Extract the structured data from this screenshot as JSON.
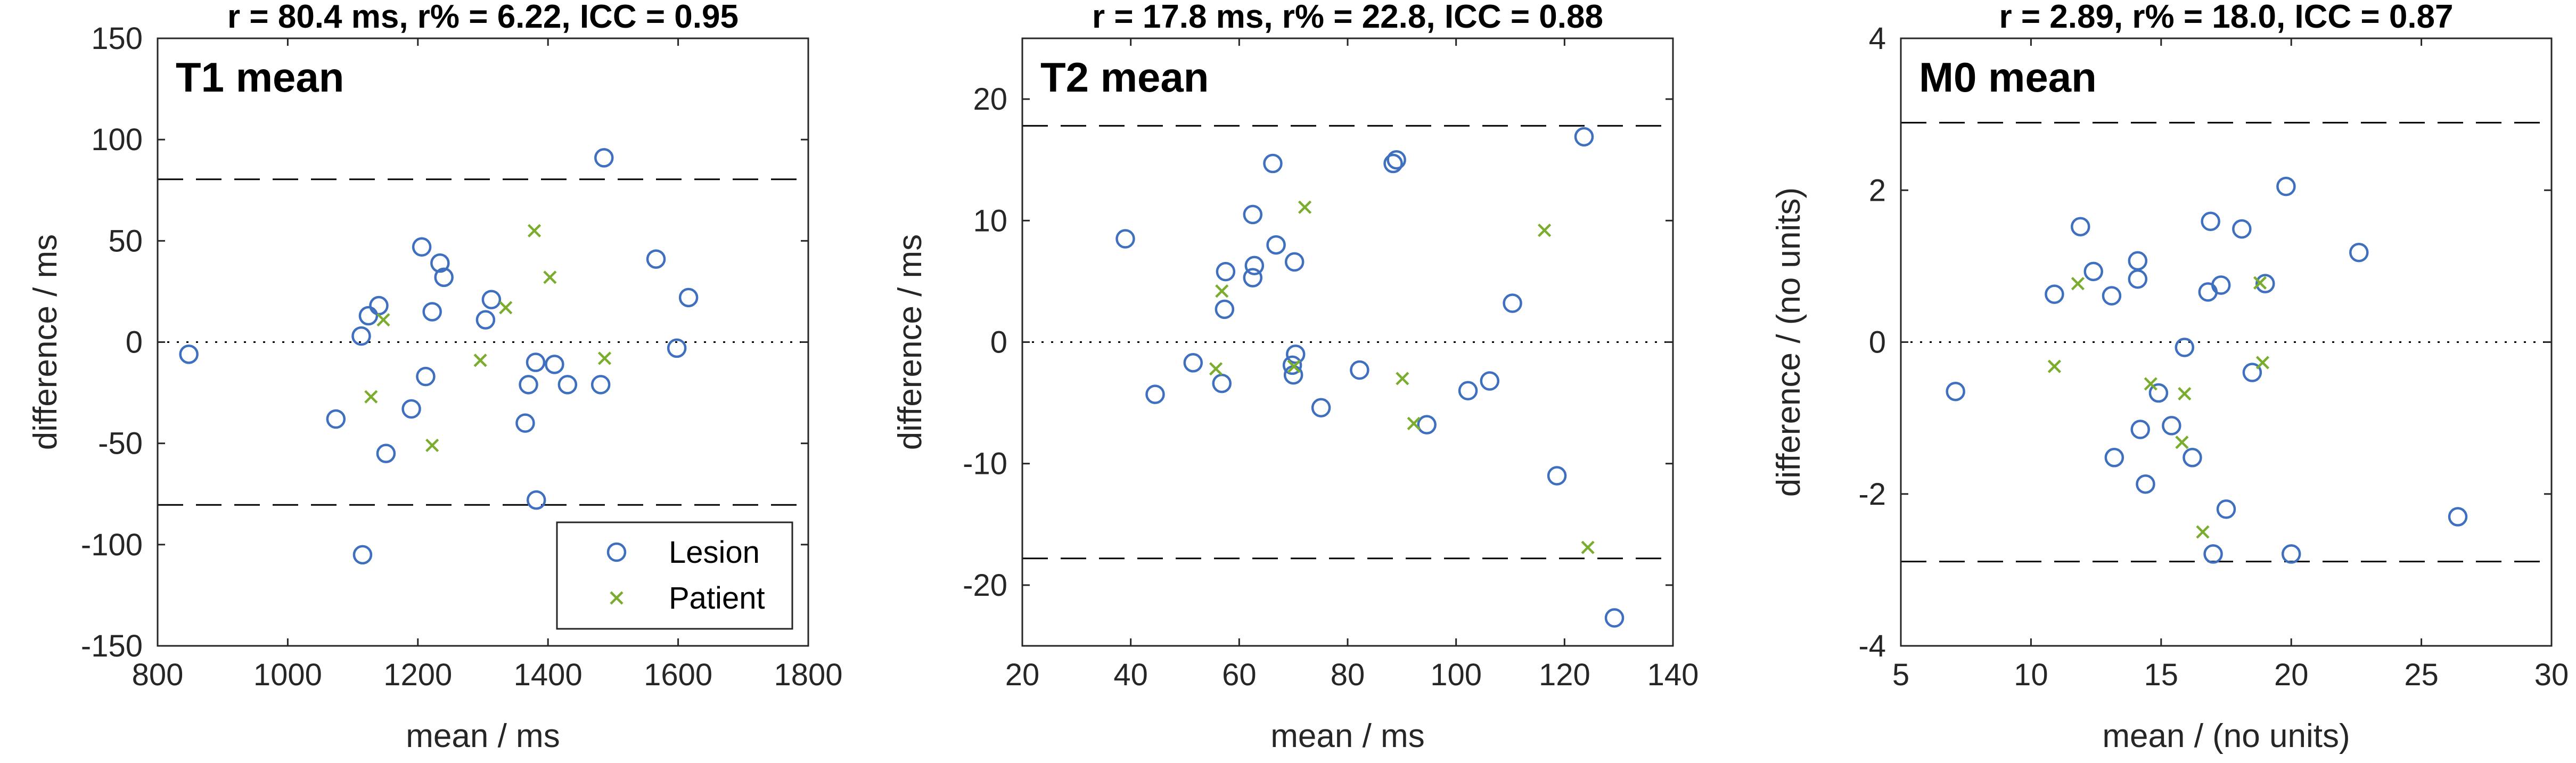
{
  "colors": {
    "lesion": "#3f6fbf",
    "patient": "#7aad2e"
  },
  "legend": {
    "lesion_label": "Lesion",
    "patient_label": "Patient"
  },
  "chart_data": [
    {
      "type": "scatter",
      "header": "r = 80.4 ms,  r% = 6.22,  ICC = 0.95",
      "panel_label": "T1 mean",
      "xlabel": "mean / ms",
      "ylabel": "difference / ms",
      "xlim": [
        800,
        1800
      ],
      "ylim": [
        -150,
        150
      ],
      "xticks": [
        800,
        1000,
        1200,
        1400,
        1600,
        1800
      ],
      "yticks": [
        -150,
        -100,
        -50,
        0,
        50,
        100,
        150
      ],
      "xtick_labels": [
        "800",
        "1000",
        "1200",
        "1400",
        "1600",
        "1800"
      ],
      "ytick_labels": [
        "-150",
        "-100",
        "-50",
        "0",
        "50",
        "100",
        "150"
      ],
      "limits_of_agreement": [
        80.4,
        -80.4
      ],
      "zero_line": 0,
      "show_legend": true,
      "series": [
        {
          "name": "Lesion",
          "marker": "circle",
          "points": [
            [
              848,
              -6
            ],
            [
              1074,
              -38
            ],
            [
              1113,
              3
            ],
            [
              1115,
              -105
            ],
            [
              1124,
              13
            ],
            [
              1140,
              18
            ],
            [
              1151,
              -55
            ],
            [
              1190,
              -33
            ],
            [
              1206,
              47
            ],
            [
              1212,
              -17
            ],
            [
              1222,
              15
            ],
            [
              1234,
              39
            ],
            [
              1240,
              32
            ],
            [
              1304,
              11
            ],
            [
              1313,
              21
            ],
            [
              1365,
              -40
            ],
            [
              1370,
              -21
            ],
            [
              1381,
              -10
            ],
            [
              1382,
              -78
            ],
            [
              1410,
              -11
            ],
            [
              1430,
              -21
            ],
            [
              1481,
              -21
            ],
            [
              1486,
              91
            ],
            [
              1566,
              41
            ],
            [
              1598,
              -3
            ],
            [
              1616,
              22
            ]
          ]
        },
        {
          "name": "Patient",
          "marker": "cross",
          "points": [
            [
              1147,
              11
            ],
            [
              1128,
              -27
            ],
            [
              1222,
              -51
            ],
            [
              1296,
              -9
            ],
            [
              1335,
              17
            ],
            [
              1379,
              55
            ],
            [
              1403,
              32
            ],
            [
              1487,
              -8
            ]
          ]
        }
      ]
    },
    {
      "type": "scatter",
      "header": "r = 17.8 ms,  r% = 22.8,  ICC = 0.88",
      "panel_label": "T2 mean",
      "xlabel": "mean / ms",
      "ylabel": "difference / ms",
      "xlim": [
        20,
        140
      ],
      "ylim": [
        -25,
        25
      ],
      "xticks": [
        20,
        40,
        60,
        80,
        100,
        120,
        140
      ],
      "yticks": [
        -20,
        -10,
        0,
        10,
        20
      ],
      "xtick_labels": [
        "20",
        "40",
        "60",
        "80",
        "100",
        "120",
        "140"
      ],
      "ytick_labels": [
        "-20",
        "-10",
        "0",
        "10",
        "20"
      ],
      "limits_of_agreement": [
        17.8,
        -17.8
      ],
      "zero_line": 0,
      "show_legend": false,
      "series": [
        {
          "name": "Lesion",
          "marker": "circle",
          "points": [
            [
              39,
              8.5
            ],
            [
              44.5,
              -4.3
            ],
            [
              51.5,
              -1.7
            ],
            [
              56.8,
              -3.4
            ],
            [
              57.5,
              5.8
            ],
            [
              57.3,
              2.7
            ],
            [
              62.5,
              10.5
            ],
            [
              62.8,
              6.3
            ],
            [
              62.5,
              5.3
            ],
            [
              66.2,
              14.7
            ],
            [
              66.8,
              8.0
            ],
            [
              70.2,
              6.6
            ],
            [
              70.4,
              -1.0
            ],
            [
              69.8,
              -1.9
            ],
            [
              70.0,
              -2.7
            ],
            [
              75.1,
              -5.4
            ],
            [
              82.2,
              -2.3
            ],
            [
              88.4,
              14.7
            ],
            [
              89.0,
              15.0
            ],
            [
              94.6,
              -6.8
            ],
            [
              102.2,
              -4.0
            ],
            [
              106.2,
              -3.2
            ],
            [
              110.4,
              3.2
            ],
            [
              118.6,
              -11.0
            ],
            [
              123.6,
              16.9
            ],
            [
              129.2,
              -22.7
            ]
          ]
        },
        {
          "name": "Patient",
          "marker": "cross",
          "points": [
            [
              55.7,
              -2.2
            ],
            [
              56.8,
              4.2
            ],
            [
              70.1,
              -2.0
            ],
            [
              72.1,
              11.1
            ],
            [
              90.1,
              -3.0
            ],
            [
              92.2,
              -6.7
            ],
            [
              116.3,
              9.2
            ],
            [
              124.3,
              -16.9
            ]
          ]
        }
      ]
    },
    {
      "type": "scatter",
      "header": "r = 2.89,  r% = 18.0,  ICC = 0.87",
      "panel_label": "M0 mean",
      "xlabel": "mean / (no units)",
      "ylabel": "difference / (no units)",
      "xlim": [
        5,
        30
      ],
      "ylim": [
        -4,
        4
      ],
      "xticks": [
        5,
        10,
        15,
        20,
        25,
        30
      ],
      "yticks": [
        -4,
        -2,
        0,
        2,
        4
      ],
      "xtick_labels": [
        "5",
        "10",
        "15",
        "20",
        "25",
        "30"
      ],
      "ytick_labels": [
        "-4",
        "-2",
        "0",
        "2",
        "4"
      ],
      "limits_of_agreement": [
        2.89,
        -2.89
      ],
      "zero_line": 0,
      "show_legend": false,
      "series": [
        {
          "name": "Lesion",
          "marker": "circle",
          "points": [
            [
              7.1,
              -0.65
            ],
            [
              10.9,
              0.63
            ],
            [
              11.9,
              1.52
            ],
            [
              12.4,
              0.93
            ],
            [
              13.1,
              0.61
            ],
            [
              13.2,
              -1.52
            ],
            [
              14.1,
              1.07
            ],
            [
              14.1,
              0.83
            ],
            [
              14.2,
              -1.15
            ],
            [
              14.4,
              -1.87
            ],
            [
              14.9,
              -0.67
            ],
            [
              15.4,
              -1.1
            ],
            [
              15.9,
              -0.07
            ],
            [
              16.2,
              -1.52
            ],
            [
              16.8,
              0.66
            ],
            [
              16.9,
              1.59
            ],
            [
              17.0,
              -2.79
            ],
            [
              17.3,
              0.75
            ],
            [
              17.5,
              -2.2
            ],
            [
              18.1,
              1.49
            ],
            [
              18.5,
              -0.4
            ],
            [
              19.0,
              0.77
            ],
            [
              19.8,
              2.05
            ],
            [
              20.0,
              -2.79
            ],
            [
              22.6,
              1.18
            ],
            [
              26.4,
              -2.3
            ]
          ]
        },
        {
          "name": "Patient",
          "marker": "cross",
          "points": [
            [
              10.9,
              -0.32
            ],
            [
              11.8,
              0.77
            ],
            [
              14.6,
              -0.55
            ],
            [
              15.9,
              -0.68
            ],
            [
              15.8,
              -1.32
            ],
            [
              16.6,
              -2.5
            ],
            [
              18.8,
              0.78
            ],
            [
              18.9,
              -0.27
            ]
          ]
        }
      ]
    }
  ]
}
